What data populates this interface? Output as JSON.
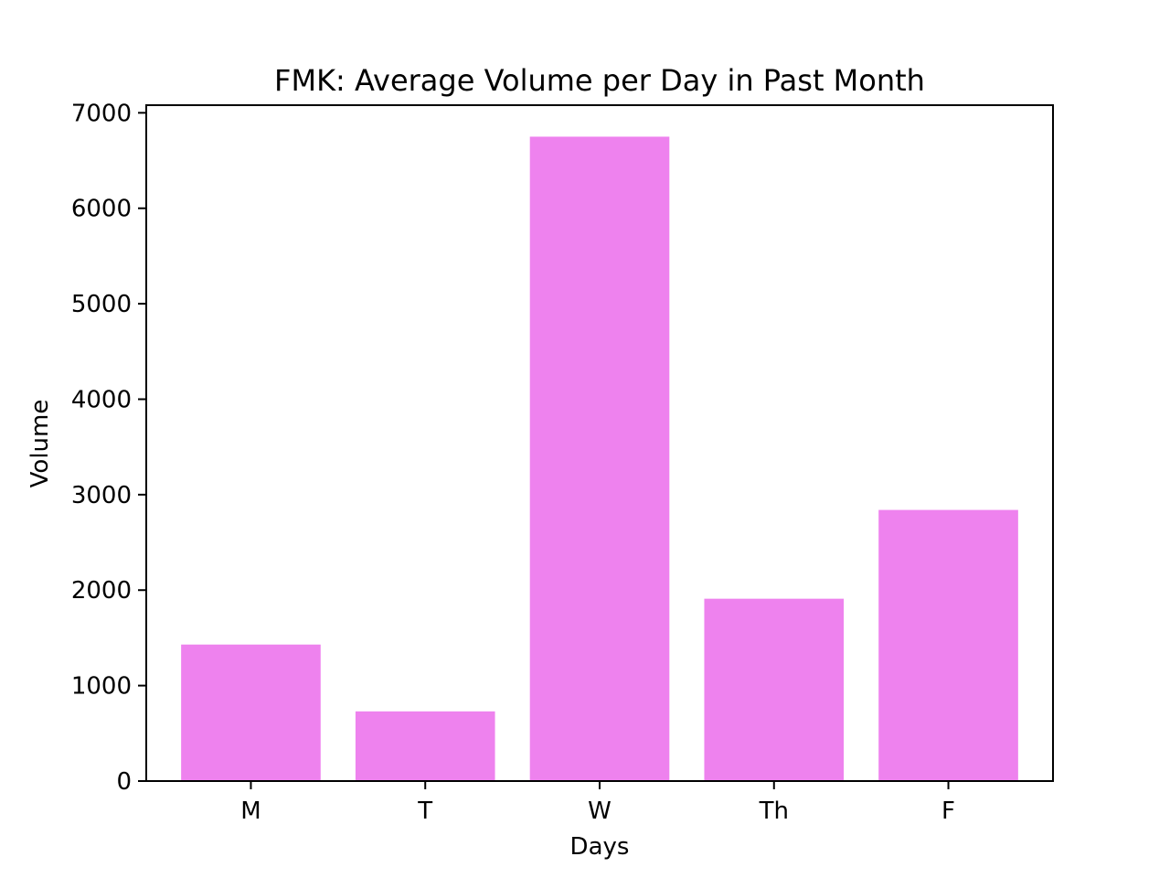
{
  "chart_data": {
    "type": "bar",
    "title": "FMK: Average Volume per Day in Past Month",
    "xlabel": "Days",
    "ylabel": "Volume",
    "categories": [
      "M",
      "T",
      "W",
      "Th",
      "F"
    ],
    "values": [
      1430,
      730,
      6750,
      1910,
      2840
    ],
    "ylim": [
      0,
      7080
    ],
    "yticks": [
      0,
      1000,
      2000,
      3000,
      4000,
      5000,
      6000,
      7000
    ],
    "ytick_labels": [
      "0",
      "1000",
      "2000",
      "3000",
      "4000",
      "5000",
      "6000",
      "7000"
    ],
    "grid": false,
    "legend": "none",
    "bar_color": "#ee82ee"
  }
}
